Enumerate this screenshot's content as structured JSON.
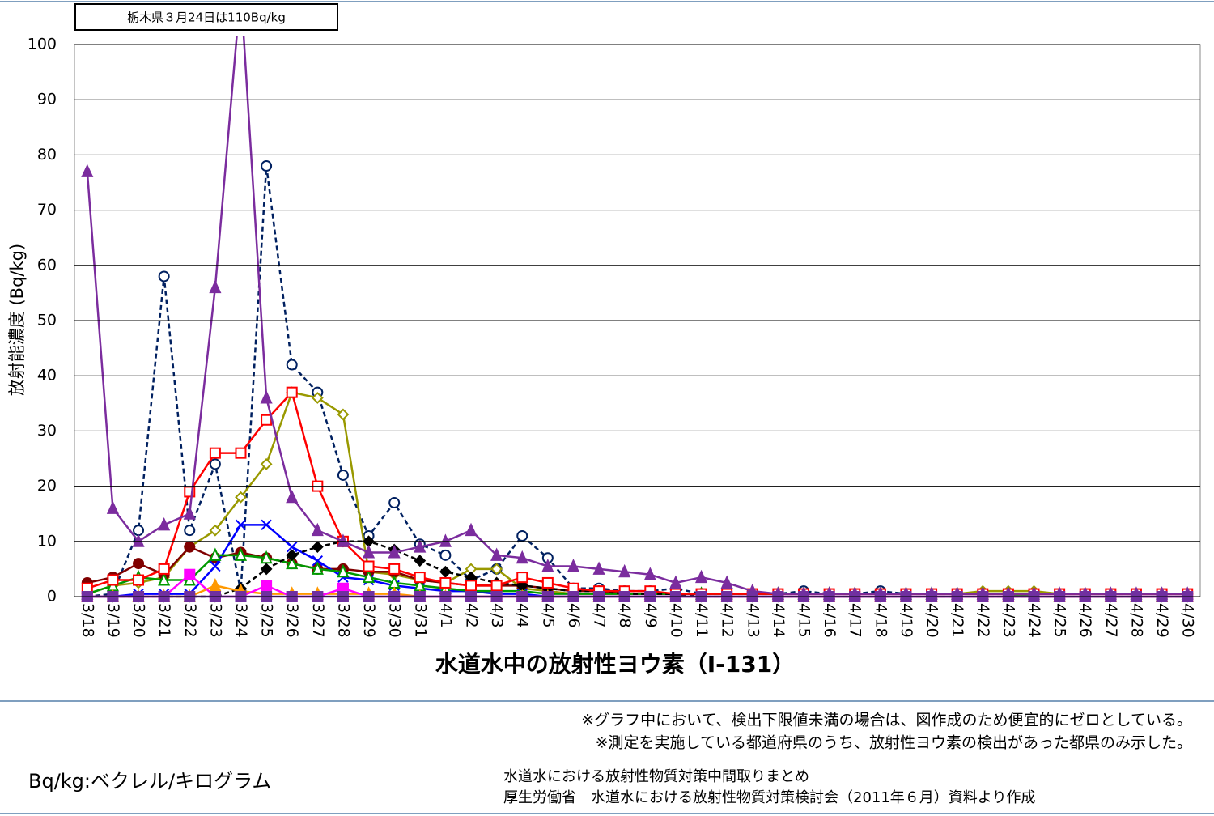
{
  "chart_data": {
    "type": "line",
    "title": "水道水中の放射性ヨウ素（I-131）",
    "y_label": "放射能濃度 (Bq/kg)",
    "annotation": "栃木県３月24日は110Bq/kg",
    "notes": [
      "※グラフ中において、検出下限値未満の場合は、図作成のため便宜的にゼロとしている。",
      "※測定を実施している都道府県のうち、放射性ヨウ素の検出があった都県のみ示した。"
    ],
    "unit_note": "Bq/kg:ベクレル/キログラム",
    "source": [
      "水道水における放射性物質対策中間取りまとめ",
      "厚生労働省　水道水における放射性物質対策検討会（2011年６月）資料より作成"
    ],
    "categories": [
      "3/18",
      "3/19",
      "3/20",
      "3/21",
      "3/22",
      "3/23",
      "3/24",
      "3/25",
      "3/26",
      "3/27",
      "3/28",
      "3/29",
      "3/30",
      "3/31",
      "4/1",
      "4/2",
      "4/3",
      "4/4",
      "4/5",
      "4/6",
      "4/7",
      "4/8",
      "4/9",
      "4/10",
      "4/11",
      "4/12",
      "4/13",
      "4/14",
      "4/15",
      "4/16",
      "4/17",
      "4/18",
      "4/19",
      "4/20",
      "4/21",
      "4/22",
      "4/23",
      "4/24",
      "4/25",
      "4/26",
      "4/27",
      "4/28",
      "4/29",
      "4/30"
    ],
    "ylim": [
      0,
      100
    ],
    "yticks": [
      0,
      10,
      20,
      30,
      40,
      50,
      60,
      70,
      80,
      90,
      100
    ],
    "grid": true,
    "series": [
      {
        "color": "#002060",
        "marker": "circle-open",
        "dash": true,
        "values": [
          0,
          0.5,
          12,
          58,
          12,
          24,
          1,
          78,
          42,
          37,
          22,
          11,
          17,
          9.5,
          7.5,
          3,
          5,
          11,
          7,
          1.5,
          1.5,
          1,
          1,
          1.5,
          0.5,
          0.5,
          0.5,
          0.5,
          1,
          0.5,
          0.5,
          1,
          0.5,
          0.5,
          0.5,
          0.5,
          0.5,
          0.5,
          0.5,
          0.5,
          0.5,
          0.5,
          0.5,
          0.5
        ]
      },
      {
        "color": "#999900",
        "marker": "diamond-open",
        "dash": false,
        "values": [
          0.5,
          2,
          2.5,
          3.5,
          9,
          12,
          18,
          24,
          37,
          36,
          33,
          4.5,
          4,
          3,
          2.5,
          5,
          5,
          1.5,
          1,
          0.5,
          0.5,
          0.5,
          0.5,
          0.5,
          0.5,
          0.5,
          0.5,
          0.5,
          0.5,
          0.5,
          0.5,
          0.5,
          0.5,
          0.5,
          0.5,
          1,
          1,
          1,
          0.5,
          0.5,
          0.5,
          0.5,
          0.5,
          0.5
        ]
      },
      {
        "color": "#800000",
        "marker": "circle",
        "dash": false,
        "values": [
          2.5,
          3.5,
          6,
          4,
          9,
          7,
          8,
          7,
          6,
          5,
          5,
          4.5,
          4.5,
          3,
          2.5,
          2,
          2,
          2,
          1.5,
          1,
          1,
          0.5,
          0.5,
          0.5,
          0.5,
          0.5,
          0.5,
          0.5,
          0.5,
          0.5,
          0.5,
          0.5,
          0.5,
          0.5,
          0.5,
          0.5,
          0.5,
          0.5,
          0.5,
          0.5,
          0.5,
          0.5,
          0.5,
          0.5
        ]
      },
      {
        "color": "#0000ff",
        "marker": "x",
        "dash": false,
        "values": [
          0,
          0,
          0.5,
          0.5,
          0.5,
          5.5,
          13,
          13,
          9,
          6.5,
          3.5,
          3,
          2,
          1.5,
          1,
          1,
          0.5,
          0.5,
          0,
          0,
          0,
          0,
          0,
          0,
          0,
          0,
          0,
          0,
          0,
          0,
          0,
          0,
          0,
          0,
          0,
          0,
          0,
          0,
          0,
          0,
          0,
          0,
          0,
          0
        ]
      },
      {
        "color": "#009900",
        "marker": "triangle-open",
        "dash": false,
        "values": [
          0.5,
          2,
          3.5,
          3,
          3,
          7.5,
          7.5,
          7,
          6,
          5,
          4.5,
          3.5,
          2.5,
          2,
          1.5,
          1,
          1,
          1,
          0.5,
          0.5,
          0.5,
          0.5,
          0.5,
          0.5,
          0.5,
          0.5,
          0.5,
          0.5,
          0.5,
          0.5,
          0.5,
          0.5,
          0.5,
          0.5,
          0.5,
          0.5,
          0.5,
          0,
          0,
          0,
          0,
          0,
          0,
          0
        ]
      },
      {
        "color": "#000000",
        "marker": "diamond",
        "dash": true,
        "values": [
          0,
          0,
          0,
          0,
          0,
          0,
          1.5,
          5,
          7.5,
          9,
          10,
          10,
          8.5,
          6.5,
          4.5,
          3.5,
          2.5,
          2,
          1.5,
          1,
          1,
          0.5,
          0.5,
          0.5,
          0,
          0,
          0,
          0,
          0,
          0,
          0,
          0,
          0,
          0,
          0,
          0,
          0,
          0,
          0,
          0,
          0,
          0,
          0,
          0
        ]
      },
      {
        "color": "#ff9900",
        "marker": "triangle",
        "dash": false,
        "values": [
          0,
          0,
          0,
          0,
          0,
          2,
          1,
          0.5,
          0.5,
          0.5,
          0.5,
          0.5,
          0.5,
          0,
          0,
          0,
          0,
          0,
          0,
          0,
          0,
          0,
          0,
          0,
          0,
          0,
          0,
          0,
          0,
          0,
          0,
          0,
          0,
          0,
          0,
          0,
          0,
          0,
          0,
          0,
          0,
          0,
          0,
          0
        ]
      },
      {
        "color": "#ff00ff",
        "marker": "square",
        "dash": false,
        "values": [
          0,
          0,
          0,
          0,
          4,
          0,
          0,
          2,
          0,
          0,
          1.5,
          0,
          0,
          0,
          0,
          0,
          0,
          0,
          0,
          0,
          0,
          0,
          0,
          0,
          0,
          0,
          0,
          0,
          0,
          0,
          0,
          0,
          0,
          0,
          0,
          0,
          0,
          0,
          0,
          0,
          0,
          0,
          0,
          0
        ]
      },
      {
        "color": "#ff0000",
        "marker": "square-open",
        "dash": false,
        "values": [
          1.5,
          3,
          3,
          5,
          19,
          26,
          26,
          32,
          37,
          20,
          10,
          5.5,
          5,
          3.5,
          2.5,
          2,
          2,
          3.5,
          2.5,
          1.5,
          1,
          1,
          1,
          0.5,
          0.5,
          0.5,
          0.5,
          0.5,
          0.5,
          0.5,
          0.5,
          0.5,
          0.5,
          0.5,
          0.5,
          0.5,
          0.5,
          0.5,
          0.5,
          0.5,
          0.5,
          0.5,
          0.5,
          0.5
        ]
      },
      {
        "color": "#7b2c9e",
        "marker": "triangle",
        "dash": false,
        "values": [
          77,
          16,
          10,
          13,
          15,
          56,
          110,
          36,
          18,
          12,
          10,
          8,
          8,
          9,
          10,
          12,
          7.5,
          7,
          5.5,
          5.5,
          5,
          4.5,
          4,
          2.5,
          3.5,
          2.5,
          1,
          0.5,
          0.5,
          0.5,
          0.5,
          0.5,
          0.5,
          0.5,
          0.5,
          0.5,
          0.5,
          0.5,
          0.5,
          0.5,
          0.5,
          0.5,
          0.5,
          0.5
        ]
      },
      {
        "color": "#7030a0",
        "marker": "square",
        "dash": false,
        "values": [
          0,
          0,
          0,
          0,
          0,
          0,
          0,
          0,
          0,
          0,
          0,
          0,
          0,
          0,
          0,
          0,
          0,
          0,
          0,
          0,
          0,
          0,
          0,
          0,
          0,
          0,
          0,
          0,
          0,
          0,
          0,
          0,
          0,
          0,
          0,
          0,
          0,
          0,
          0,
          0,
          0,
          0,
          0,
          0
        ]
      }
    ]
  }
}
